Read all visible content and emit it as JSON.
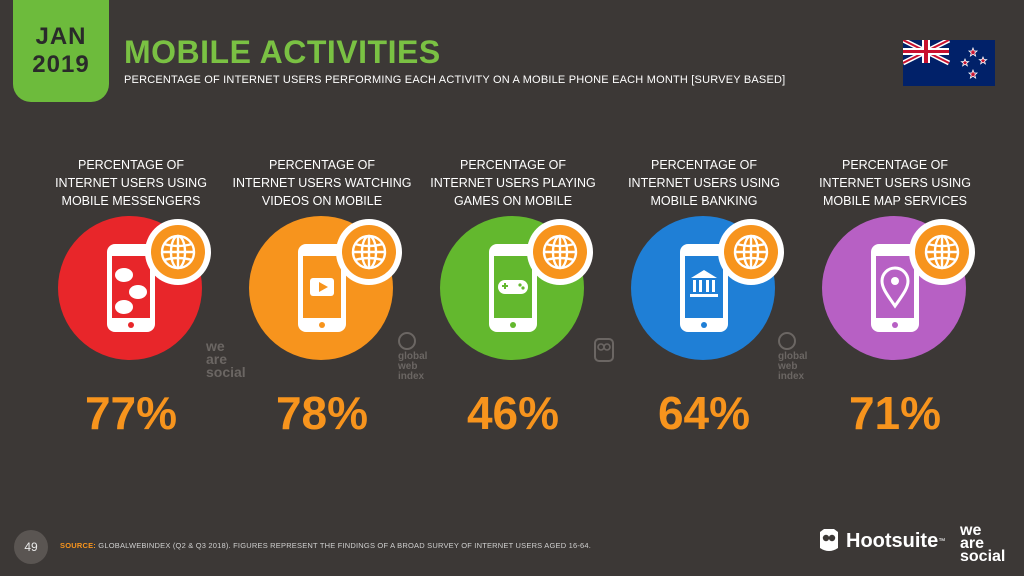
{
  "header": {
    "month": "JAN",
    "year": "2019",
    "title": "MOBILE ACTIVITIES",
    "subtitle": "PERCENTAGE OF INTERNET USERS PERFORMING EACH ACTIVITY ON A MOBILE PHONE EACH MONTH [SURVEY BASED]"
  },
  "activities": [
    {
      "line1": "PERCENTAGE OF",
      "line2": "INTERNET USERS USING",
      "line3": "MOBILE MESSENGERS",
      "value": "77%",
      "color": "#e8262a",
      "icon": "chat-bubbles-icon"
    },
    {
      "line1": "PERCENTAGE OF",
      "line2": "INTERNET USERS WATCHING",
      "line3": "VIDEOS ON MOBILE",
      "value": "78%",
      "color": "#f7941d",
      "icon": "play-icon"
    },
    {
      "line1": "PERCENTAGE OF",
      "line2": "INTERNET USERS PLAYING",
      "line3": "GAMES ON MOBILE",
      "value": "46%",
      "color": "#63b82e",
      "icon": "gamepad-icon"
    },
    {
      "line1": "PERCENTAGE OF",
      "line2": "INTERNET USERS USING",
      "line3": "MOBILE BANKING",
      "value": "64%",
      "color": "#1f7fd6",
      "icon": "bank-icon"
    },
    {
      "line1": "PERCENTAGE OF",
      "line2": "INTERNET USERS USING",
      "line3": "MOBILE MAP SERVICES",
      "value": "71%",
      "color": "#b760c4",
      "icon": "map-pin-icon"
    }
  ],
  "watermarks": {
    "we_are_social": [
      "we",
      "are",
      "social"
    ],
    "globalwebindex": [
      "global",
      "web",
      "index"
    ]
  },
  "footer": {
    "page": "49",
    "source_label": "SOURCE:",
    "source_text": "GLOBALWEBINDEX (Q2 & Q3 2018). FIGURES REPRESENT THE FINDINGS OF A BROAD SURVEY OF INTERNET USERS AGED 16-64.",
    "hootsuite": "Hootsuite",
    "trademark": "™",
    "was": [
      "we",
      "are",
      "social"
    ]
  }
}
